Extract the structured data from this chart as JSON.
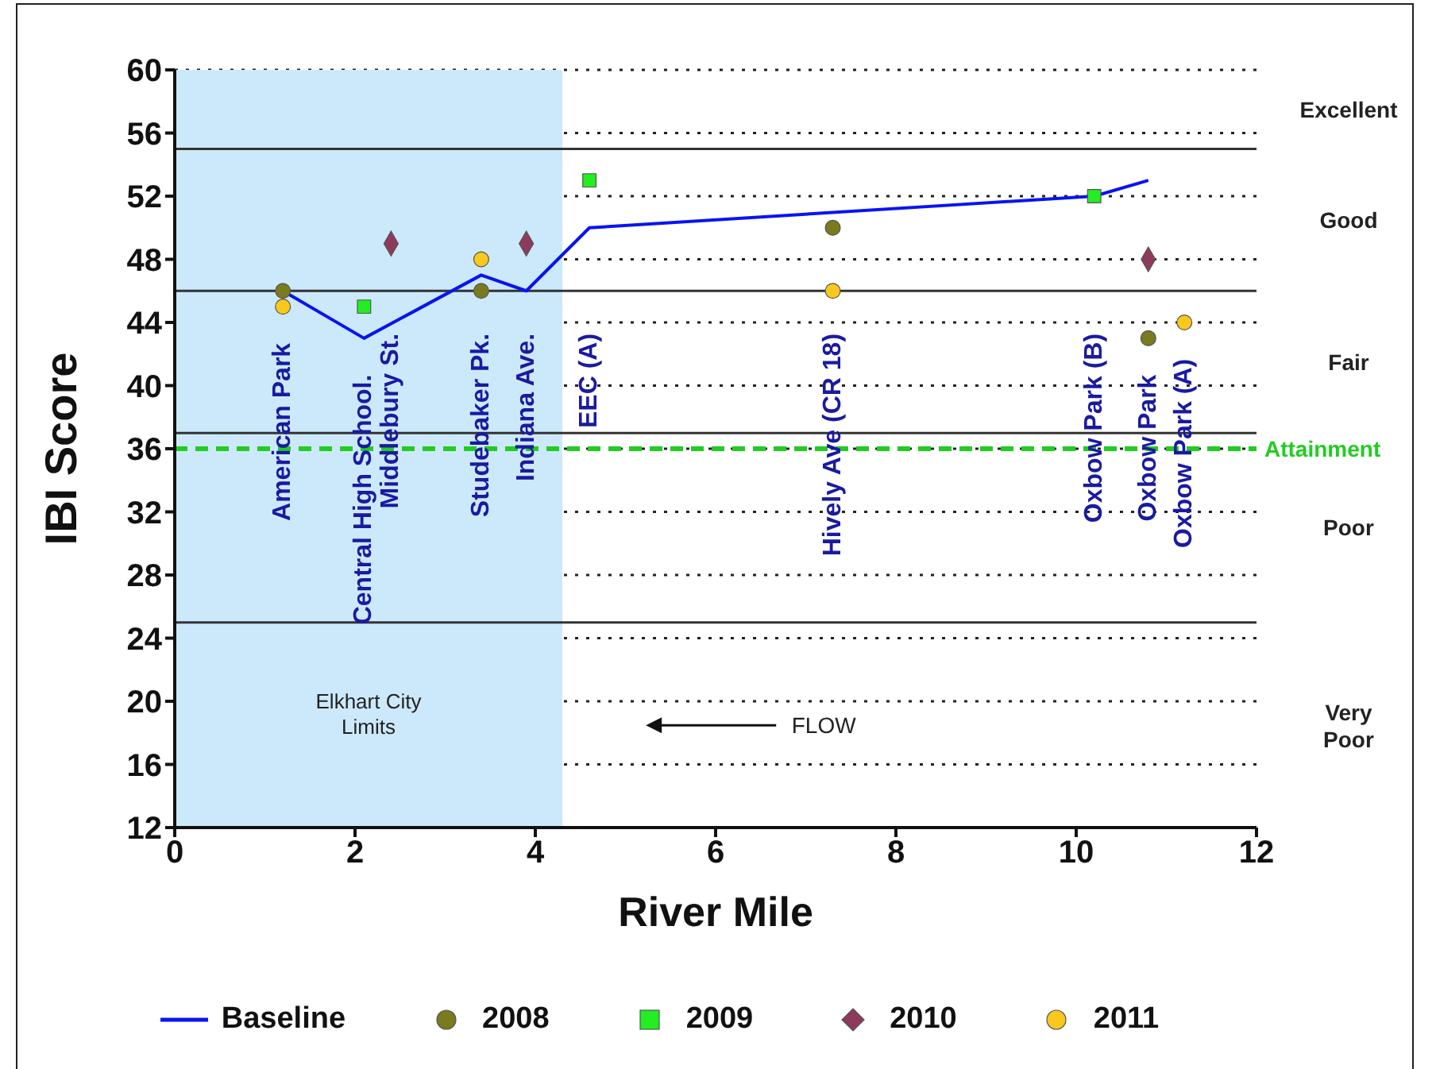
{
  "chart_data": {
    "type": "scatter",
    "xlabel": "River Mile",
    "ylabel": "IBI Score",
    "xlim": [
      0,
      12
    ],
    "xticks": [
      0,
      2,
      4,
      6,
      8,
      10,
      12
    ],
    "ylim": [
      12,
      60
    ],
    "yticks": [
      12,
      16,
      20,
      24,
      28,
      32,
      36,
      40,
      44,
      48,
      52,
      56,
      60
    ],
    "grid": "y",
    "legend": "bottom",
    "series": [
      {
        "name": "Baseline",
        "type": "line",
        "color": "#0a14f0",
        "marker": "none",
        "x": [
          1.2,
          2.1,
          3.4,
          3.9,
          4.6,
          10.2,
          10.8
        ],
        "values": [
          46,
          43,
          47,
          46,
          50,
          52,
          53
        ]
      },
      {
        "name": "2008",
        "color": "#7a7a1e",
        "marker": "circle",
        "x": [
          1.2,
          3.4,
          7.3,
          10.8
        ],
        "values": [
          46,
          46,
          50,
          43
        ]
      },
      {
        "name": "2009",
        "color": "#22ee22",
        "marker": "square",
        "x": [
          2.1,
          4.6,
          10.2
        ],
        "values": [
          45,
          53,
          52
        ]
      },
      {
        "name": "2010",
        "color": "#8e3a5c",
        "marker": "diamond",
        "x": [
          2.4,
          3.9,
          10.8
        ],
        "values": [
          49,
          49,
          48
        ]
      },
      {
        "name": "2011",
        "color": "#f8c81c",
        "marker": "circle",
        "x": [
          1.2,
          3.4,
          7.3,
          11.2
        ],
        "values": [
          45,
          48,
          46,
          44
        ]
      }
    ],
    "ref_lines": [
      {
        "axis": "y",
        "value": 55,
        "color": "#333333",
        "line_style": "solid"
      },
      {
        "axis": "y",
        "value": 46,
        "color": "#333333",
        "line_style": "solid"
      },
      {
        "axis": "y",
        "value": 37,
        "color": "#333333",
        "line_style": "solid"
      },
      {
        "axis": "y",
        "value": 36,
        "label": "Attainment",
        "color": "#22cc22",
        "line_style": "dashed"
      },
      {
        "axis": "y",
        "value": 25,
        "color": "#333333",
        "line_style": "solid"
      }
    ],
    "bands": [
      {
        "axis": "x",
        "from": 0,
        "to": 4.3,
        "label": "Elkhart City Limits",
        "color": "#cce9fb"
      }
    ],
    "annotations": [
      "American Park",
      "Central High School.",
      "Middlebury St.",
      "Studebaker Pk.",
      "Indiana Ave.",
      "EEC (A)",
      "Hively Ave (CR 18)",
      "Oxbow Park (B)",
      "Oxbow Park",
      "Oxbow Park (A)",
      "FLOW",
      "Excellent",
      "Good",
      "Fair",
      "Poor",
      "Very Poor"
    ]
  }
}
